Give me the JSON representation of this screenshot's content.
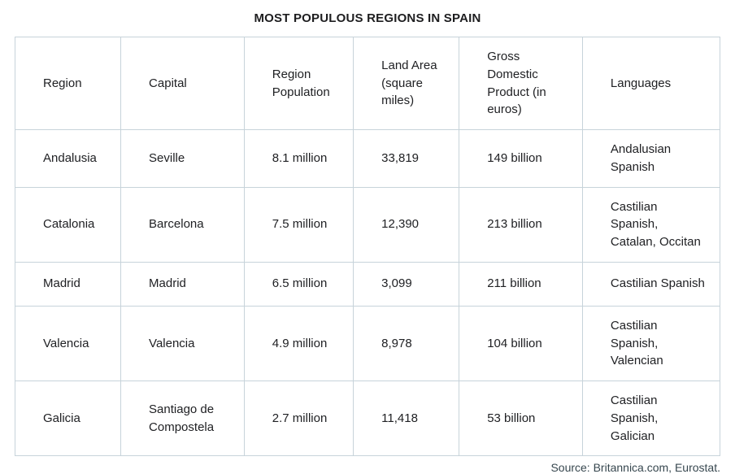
{
  "title": "MOST POPULOUS REGIONS IN SPAIN",
  "source": "Source: Britannica.com, Eurostat.",
  "chart_data": {
    "type": "table",
    "title": "MOST POPULOUS REGIONS IN SPAIN",
    "columns": [
      "Region",
      "Capital",
      "Region Population",
      "Land Area (square miles)",
      "Gross Domestic Product (in euros)",
      "Languages"
    ],
    "rows": [
      [
        "Andalusia",
        "Seville",
        "8.1 million",
        "33,819",
        "149 billion",
        "Andalusian Spanish"
      ],
      [
        "Catalonia",
        "Barcelona",
        "7.5 million",
        "12,390",
        "213 billion",
        "Castilian Spanish, Catalan, Occitan"
      ],
      [
        "Madrid",
        "Madrid",
        "6.5 million",
        "3,099",
        "211 billion",
        "Castilian Spanish"
      ],
      [
        "Valencia",
        "Valencia",
        "4.9 million",
        "8,978",
        "104 billion",
        "Castilian Spanish, Valencian"
      ],
      [
        "Galicia",
        "Santiago de Compostela",
        "2.7 million",
        "11,418",
        "53 billion",
        "Castilian Spanish, Galician"
      ]
    ],
    "source": "Source: Britannica.com, Eurostat.",
    "layout": {
      "grid": "full-borders",
      "border_color": "#c7d3da",
      "header_position": "top"
    }
  }
}
